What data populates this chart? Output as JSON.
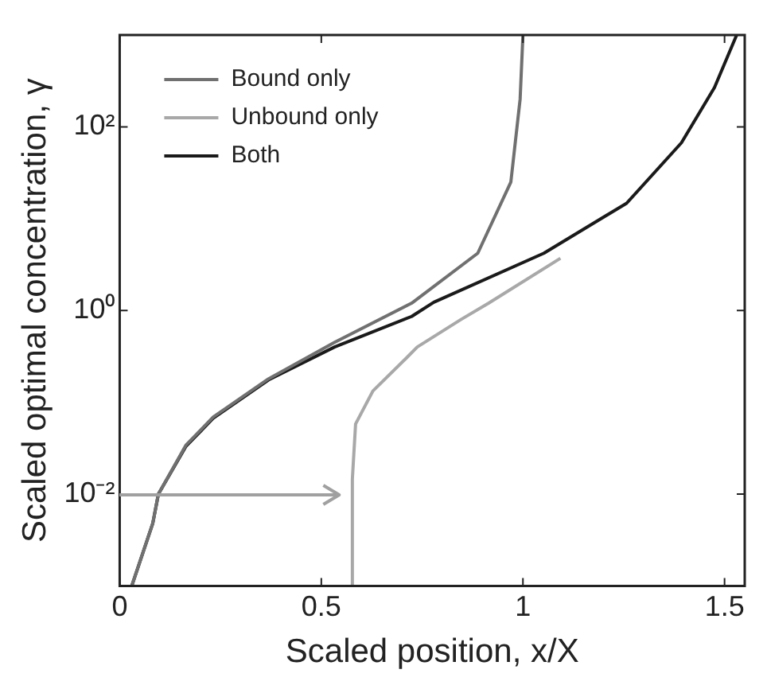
{
  "chart_data": {
    "type": "line",
    "xlabel": "Scaled position, x/X",
    "ylabel": "Scaled optimal concentration, γ",
    "log": "y",
    "xlim": [
      0,
      1.55
    ],
    "xticks": [
      0,
      0.5,
      1,
      1.5
    ],
    "ylim": [
      0.001,
      1000
    ],
    "yticks": [
      {
        "value": 0.01,
        "label": "10⁻²"
      },
      {
        "value": 1,
        "label": "10⁰"
      },
      {
        "value": 100,
        "label": "10²"
      }
    ],
    "grid": false,
    "legend": "top left",
    "marker": "none",
    "line_style": "solid",
    "series": [
      {
        "name": "Bound only",
        "color": "#707070",
        "x": [
          0.03,
          0.082,
          0.096,
          0.164,
          0.232,
          0.369,
          0.533,
          0.724,
          0.888,
          0.97,
          0.993,
          1.0
        ],
        "values": [
          0.001,
          0.0048,
          0.01,
          0.034,
          0.069,
          0.18,
          0.45,
          1.2,
          4.2,
          25,
          200,
          1000
        ]
      },
      {
        "name": "Unbound only",
        "color": "#a8a8a8",
        "x": [
          0.576,
          0.577,
          0.585,
          0.628,
          0.71,
          0.738,
          0.847,
          0.915,
          1.093
        ],
        "values": [
          0.001,
          0.0146,
          0.058,
          0.133,
          0.3,
          0.4,
          0.8,
          1.2,
          3.7
        ]
      },
      {
        "name": "Both",
        "color": "#1a1a1a",
        "x": [
          0.03,
          0.082,
          0.096,
          0.164,
          0.232,
          0.369,
          0.533,
          0.724,
          0.779,
          1.052,
          1.257,
          1.393,
          1.475,
          1.53
        ],
        "values": [
          0.001,
          0.0048,
          0.01,
          0.033,
          0.067,
          0.175,
          0.4,
          0.86,
          1.23,
          4.2,
          14.7,
          67,
          268,
          1000
        ]
      }
    ]
  }
}
